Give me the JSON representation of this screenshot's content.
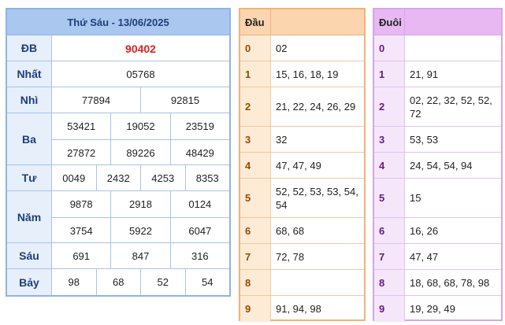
{
  "results": {
    "title": "Thứ Sáu - 13/06/2025",
    "prizes": [
      {
        "label": "ĐB",
        "lines": [
          [
            "90402"
          ]
        ]
      },
      {
        "label": "Nhất",
        "lines": [
          [
            "05768"
          ]
        ]
      },
      {
        "label": "Nhì",
        "lines": [
          [
            "77894",
            "92815"
          ]
        ]
      },
      {
        "label": "Ba",
        "lines": [
          [
            "53421",
            "19052",
            "23519"
          ],
          [
            "27872",
            "89226",
            "48429"
          ]
        ]
      },
      {
        "label": "Tư",
        "lines": [
          [
            "0049",
            "2432",
            "4253",
            "8353"
          ]
        ]
      },
      {
        "label": "Năm",
        "lines": [
          [
            "9878",
            "2918",
            "0124"
          ],
          [
            "3754",
            "5922",
            "6047"
          ]
        ]
      },
      {
        "label": "Sáu",
        "lines": [
          [
            "691",
            "847",
            "316"
          ]
        ]
      },
      {
        "label": "Bảy",
        "lines": [
          [
            "98",
            "68",
            "52",
            "54"
          ]
        ]
      }
    ],
    "special_color": "#e02020"
  },
  "head_loto": {
    "header": "Đầu",
    "rows": [
      {
        "key": "0",
        "value": "02"
      },
      {
        "key": "1",
        "value": "15, 16, 18, 19"
      },
      {
        "key": "2",
        "value": "21, 22, 24, 26, 29"
      },
      {
        "key": "3",
        "value": "32"
      },
      {
        "key": "4",
        "value": "47, 47, 49"
      },
      {
        "key": "5",
        "value": "52, 52, 53, 53, 54, 54"
      },
      {
        "key": "6",
        "value": "68, 68"
      },
      {
        "key": "7",
        "value": "72, 78"
      },
      {
        "key": "8",
        "value": ""
      },
      {
        "key": "9",
        "value": "91, 94, 98"
      }
    ]
  },
  "tail_loto": {
    "header": "Đuôi",
    "rows": [
      {
        "key": "0",
        "value": ""
      },
      {
        "key": "1",
        "value": "21, 91"
      },
      {
        "key": "2",
        "value": "02, 22, 32, 52, 52, 72"
      },
      {
        "key": "3",
        "value": "53, 53"
      },
      {
        "key": "4",
        "value": "24, 54, 54, 94"
      },
      {
        "key": "5",
        "value": "15"
      },
      {
        "key": "6",
        "value": "16, 26"
      },
      {
        "key": "7",
        "value": "47, 47"
      },
      {
        "key": "8",
        "value": "18, 68, 68, 78, 98"
      },
      {
        "key": "9",
        "value": "19, 29, 49"
      }
    ]
  }
}
